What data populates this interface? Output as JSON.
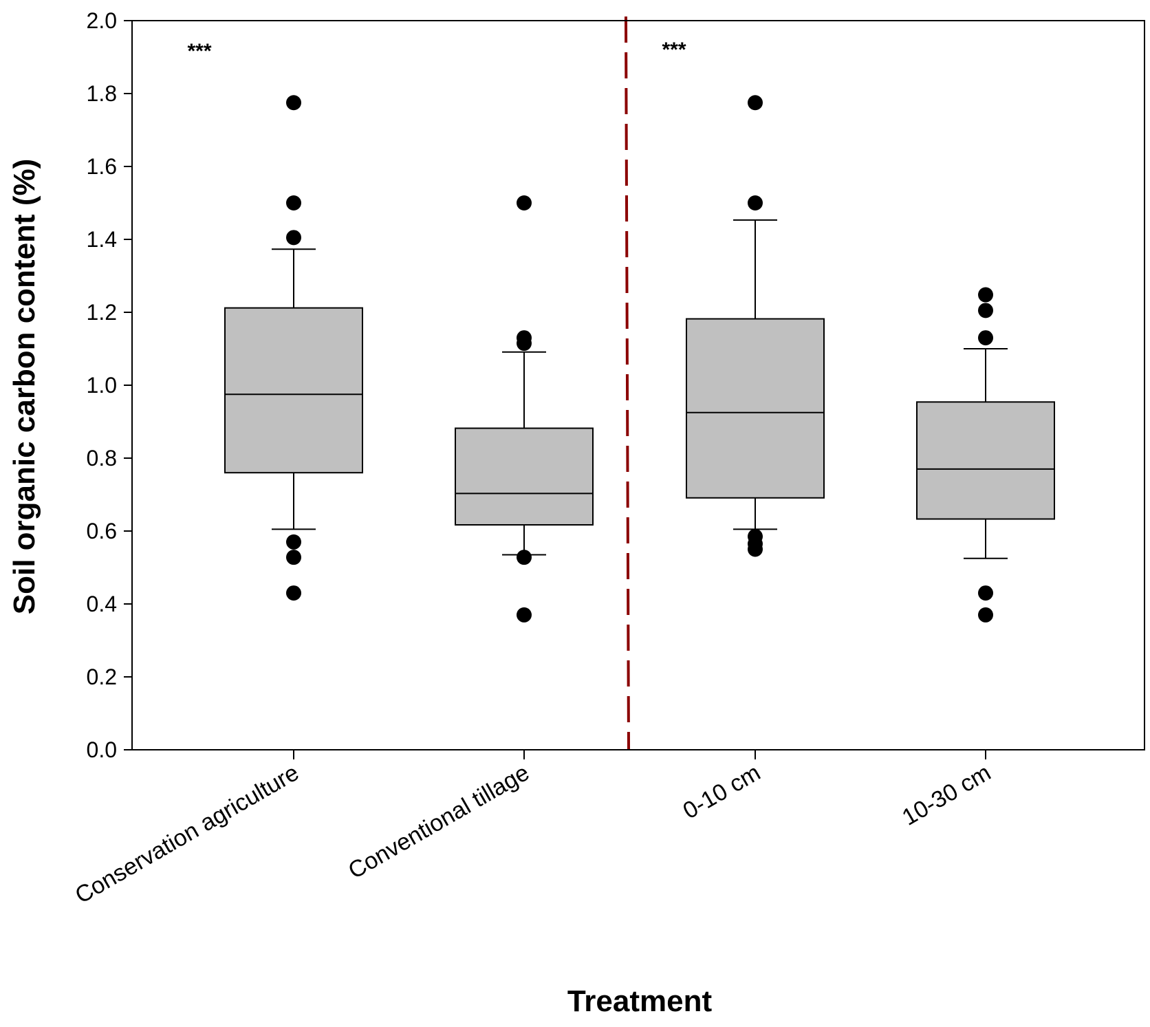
{
  "chart_data": {
    "type": "boxplot",
    "xlabel": "Treatment",
    "ylabel": "Soil organic carbon content (%)",
    "ylim": [
      0,
      2.0
    ],
    "yticks": [
      "0.0",
      "0.2",
      "0.4",
      "0.6",
      "0.8",
      "1.0",
      "1.2",
      "1.4",
      "1.6",
      "1.8",
      "2.0"
    ],
    "grid": false,
    "box_color": "#c0c0c0",
    "divider_color": "#8b0000",
    "annotations": [
      {
        "text": "***",
        "group": "management"
      },
      {
        "text": "***",
        "group": "depth"
      }
    ],
    "categories": [
      {
        "label": "Conservation agriculture",
        "whisker_low": 0.605,
        "q1": 0.76,
        "median": 0.975,
        "q3": 1.212,
        "whisker_high": 1.373,
        "outliers": [
          1.775,
          1.5,
          1.405,
          0.57,
          0.528,
          0.43
        ]
      },
      {
        "label": "Conventional tillage",
        "whisker_low": 0.535,
        "q1": 0.617,
        "median": 0.703,
        "q3": 0.882,
        "whisker_high": 1.091,
        "outliers": [
          1.5,
          1.13,
          1.115,
          0.528,
          0.37
        ]
      },
      {
        "label": "0-10 cm",
        "whisker_low": 0.605,
        "q1": 0.691,
        "median": 0.925,
        "q3": 1.182,
        "whisker_high": 1.453,
        "outliers": [
          1.775,
          1.5,
          0.585,
          0.565,
          0.55
        ]
      },
      {
        "label": "10-30 cm",
        "whisker_low": 0.525,
        "q1": 0.633,
        "median": 0.77,
        "q3": 0.954,
        "whisker_high": 1.1,
        "outliers": [
          1.248,
          1.205,
          1.13,
          0.43,
          0.37
        ]
      }
    ]
  }
}
